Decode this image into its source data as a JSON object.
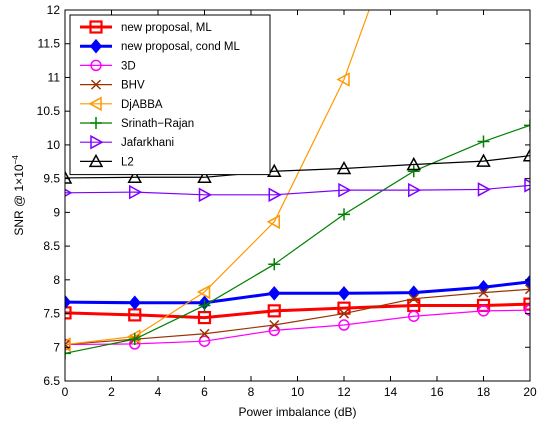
{
  "chart_data": {
    "type": "line",
    "title": "",
    "xlabel": "Power imbalance (dB)",
    "ylabel_main": "SNR @ 1×10",
    "ylabel_exp": "−4",
    "xlim": [
      0,
      20
    ],
    "ylim": [
      6.5,
      12
    ],
    "x_ticks": [
      0,
      2,
      4,
      6,
      8,
      10,
      12,
      14,
      16,
      18,
      20
    ],
    "y_ticks": [
      6.5,
      7,
      7.5,
      8,
      8.5,
      9,
      9.5,
      10,
      10.5,
      11,
      11.5,
      12
    ],
    "x_tick_labels": [
      "0",
      "2",
      "4",
      "6",
      "8",
      "10",
      "12",
      "14",
      "16",
      "18",
      "20"
    ],
    "y_tick_labels": [
      "6.5",
      "7",
      "7.5",
      "8",
      "8.5",
      "9",
      "9.5",
      "10",
      "10.5",
      "11",
      "11.5",
      "12"
    ],
    "grid": false,
    "legend_position": "top-left",
    "series": [
      {
        "name": "new proposal, ML",
        "color": "#ff0000",
        "marker": "square",
        "line_width": 3,
        "x": [
          0,
          3,
          6,
          9,
          12,
          15,
          18,
          20
        ],
        "y": [
          7.51,
          7.48,
          7.44,
          7.54,
          7.58,
          7.62,
          7.62,
          7.64
        ]
      },
      {
        "name": "new proposal, cond ML",
        "color": "#0000ff",
        "marker": "diamond",
        "line_width": 3,
        "x": [
          0,
          3,
          6,
          9,
          12,
          15,
          18,
          20
        ],
        "y": [
          7.67,
          7.66,
          7.66,
          7.8,
          7.8,
          7.81,
          7.89,
          7.97
        ]
      },
      {
        "name": "3D",
        "color": "#ff00ff",
        "marker": "circle",
        "line_width": 1.2,
        "x": [
          0,
          3,
          6,
          9,
          12,
          15,
          18,
          20
        ],
        "y": [
          7.04,
          7.05,
          7.09,
          7.25,
          7.33,
          7.46,
          7.54,
          7.55
        ]
      },
      {
        "name": "BHV",
        "color": "#993300",
        "marker": "x",
        "line_width": 1.2,
        "x": [
          0,
          3,
          6,
          9,
          12,
          15,
          18,
          20
        ],
        "y": [
          7.04,
          7.12,
          7.2,
          7.33,
          7.5,
          7.72,
          7.81,
          7.86
        ]
      },
      {
        "name": "DjABBA",
        "color": "#ff9900",
        "marker": "triangle-left",
        "line_width": 1.2,
        "x": [
          0,
          3,
          6,
          9,
          12,
          13.5
        ],
        "y": [
          7.04,
          7.16,
          7.82,
          8.86,
          10.97,
          12.4
        ]
      },
      {
        "name": "Srinath−Rajan",
        "color": "#008000",
        "marker": "plus",
        "line_width": 1.2,
        "x": [
          0,
          3,
          6,
          9,
          12,
          15,
          18,
          20
        ],
        "y": [
          6.91,
          7.12,
          7.62,
          8.23,
          8.97,
          9.61,
          10.05,
          10.29
        ]
      },
      {
        "name": "Jafarkhani",
        "color": "#8000ff",
        "marker": "triangle-right",
        "line_width": 1.2,
        "x": [
          0,
          3,
          6,
          9,
          12,
          15,
          18,
          20
        ],
        "y": [
          9.29,
          9.3,
          9.26,
          9.26,
          9.33,
          9.33,
          9.34,
          9.4
        ]
      },
      {
        "name": "L2",
        "color": "#000000",
        "marker": "triangle-up",
        "line_width": 1.2,
        "x": [
          0,
          3,
          6,
          9,
          12,
          15,
          18,
          20
        ],
        "y": [
          9.51,
          9.52,
          9.52,
          9.61,
          9.65,
          9.71,
          9.76,
          9.84
        ]
      }
    ]
  }
}
